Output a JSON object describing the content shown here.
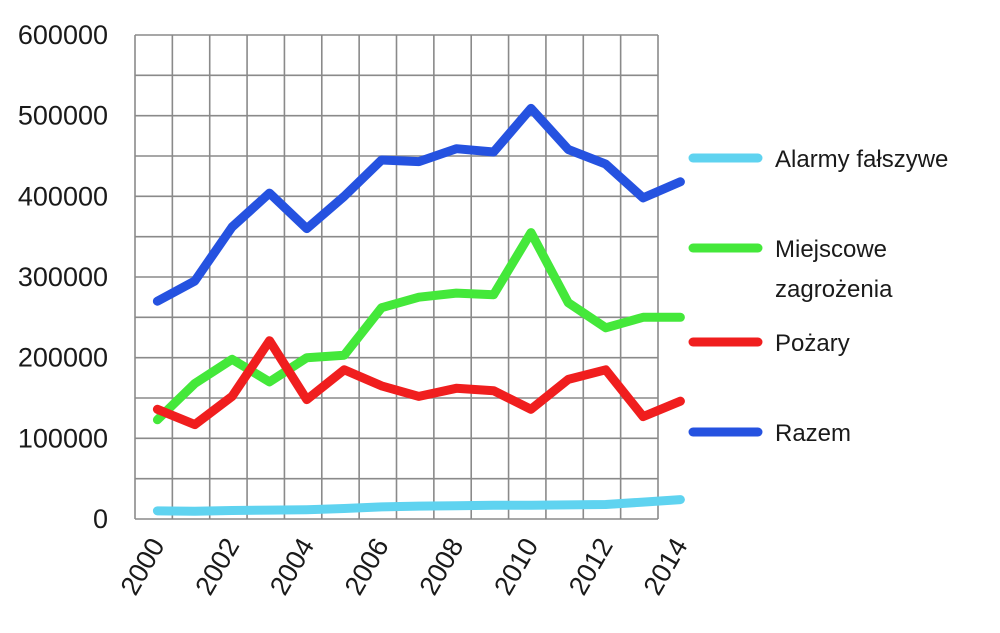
{
  "chart_data": {
    "type": "line",
    "x": [
      2000,
      2001,
      2002,
      2003,
      2004,
      2005,
      2006,
      2007,
      2008,
      2009,
      2010,
      2011,
      2012,
      2013,
      2014
    ],
    "x_tick_labels": [
      "2000",
      "2002",
      "2004",
      "2006",
      "2008",
      "2010",
      "2012",
      "2014"
    ],
    "y_tick_labels": [
      "0",
      "100000",
      "200000",
      "300000",
      "400000",
      "500000",
      "600000"
    ],
    "ylim": [
      0,
      600000
    ],
    "grid": true,
    "legend_position": "right",
    "series": [
      {
        "name": "Alarmy fałszywe",
        "color": "#5fd3f0",
        "values": [
          10000,
          9500,
          10500,
          11000,
          11500,
          13000,
          15000,
          16000,
          16500,
          17000,
          17000,
          17500,
          18000,
          21000,
          24000
        ]
      },
      {
        "name": "Miejscowe zagrożenia",
        "color": "#44e83a",
        "values": [
          123000,
          168000,
          198000,
          170000,
          200000,
          203000,
          262000,
          275000,
          280000,
          278000,
          355000,
          268000,
          237000,
          250000,
          250000
        ]
      },
      {
        "name": "Pożary",
        "color": "#f01e1e",
        "values": [
          136000,
          117000,
          152000,
          221000,
          148000,
          185000,
          165000,
          152000,
          162000,
          159000,
          136000,
          173000,
          185000,
          127000,
          146000
        ]
      },
      {
        "name": "Razem",
        "color": "#2552e0",
        "values": [
          270000,
          295000,
          362000,
          404000,
          360000,
          400000,
          445000,
          443000,
          459000,
          455000,
          509000,
          458000,
          440000,
          398000,
          418000
        ]
      }
    ]
  },
  "legend": {
    "label_1": "Alarmy fałszywe",
    "label_2_line1": "Miejscowe",
    "label_2_line2": "zagrożenia",
    "label_3": "Pożary",
    "label_4": "Razem"
  }
}
